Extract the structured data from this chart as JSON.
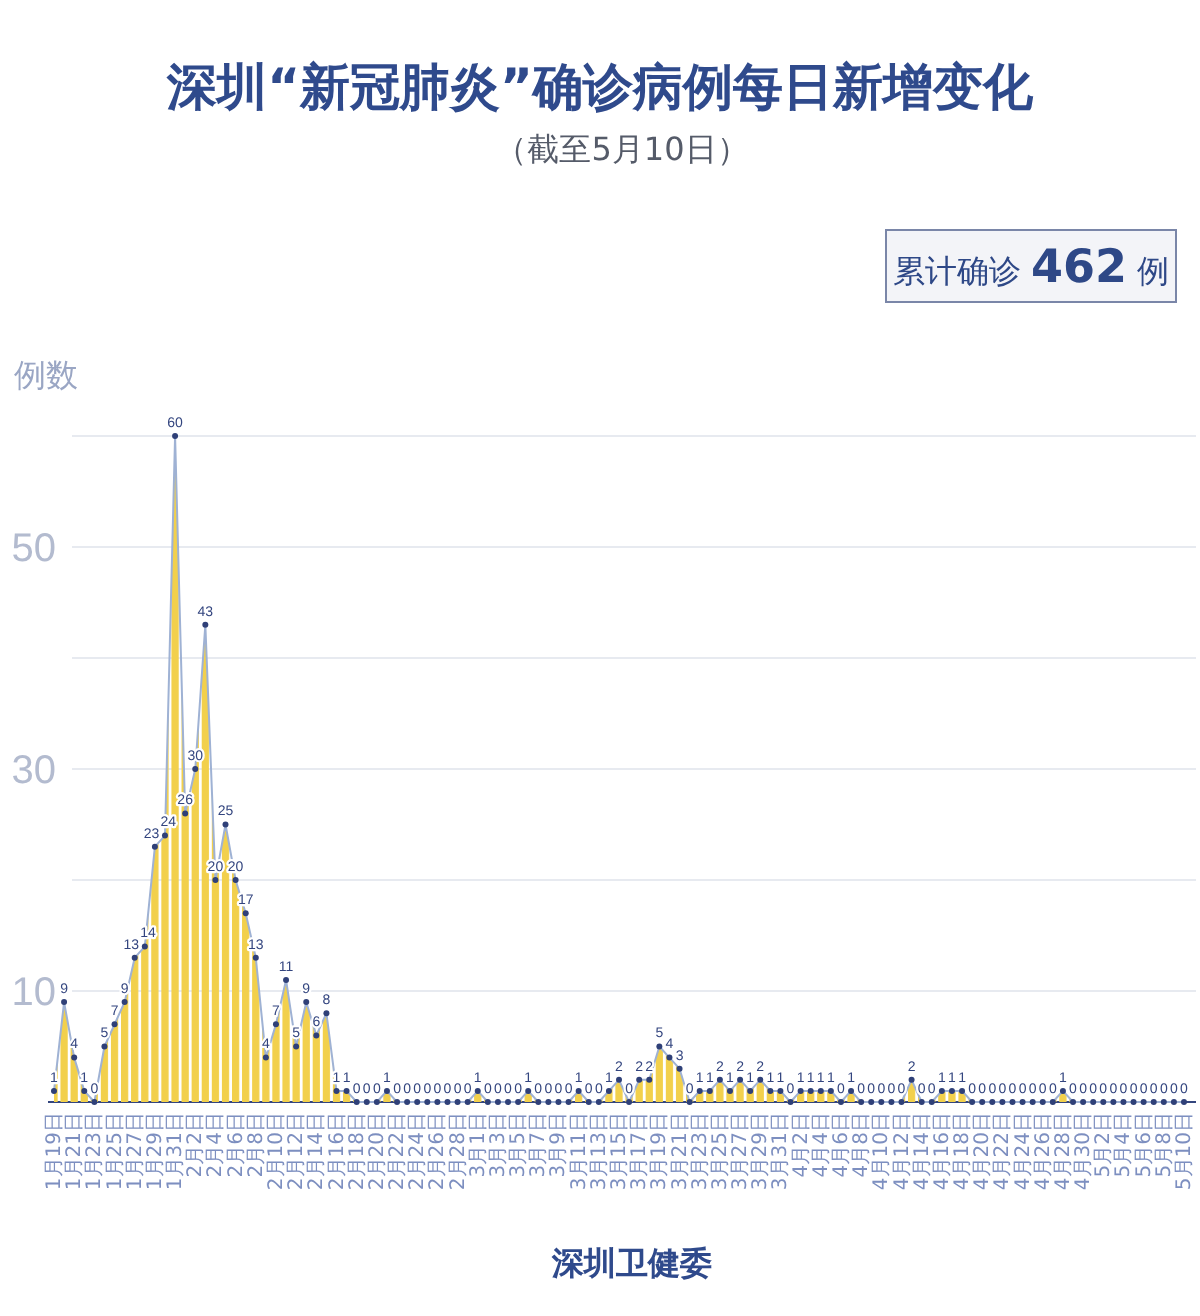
{
  "chart_data": {
    "type": "area",
    "title": "深圳“新冠肺炎”确诊病例每日新增变化",
    "subtitle": "（截至5月10日）",
    "ylabel": "例数",
    "annotations": [
      "累计确诊 **462** 例",
      "深圳卫健委"
    ],
    "categories": [
      "1月19日",
      null,
      "1月21日",
      null,
      "1月23日",
      null,
      "1月25日",
      null,
      "1月27日",
      null,
      "1月29日",
      null,
      "1月31日",
      null,
      "2月2日",
      null,
      "2月4日",
      null,
      "2月6日",
      null,
      "2月8日",
      null,
      "2月10日",
      null,
      "2月12日",
      null,
      "2月14日",
      null,
      "2月16日",
      null,
      "2月18日",
      null,
      "2月20日",
      null,
      "2月22日",
      null,
      "2月24日",
      null,
      "2月26日",
      null,
      "2月28日",
      null,
      "3月1日",
      null,
      "3月3日",
      null,
      "3月5日",
      null,
      "3月7日",
      null,
      "3月9日",
      null,
      "3月11日",
      null,
      "3月13日",
      null,
      "3月15日",
      null,
      "3月17日",
      null,
      "3月19日",
      null,
      "3月21日",
      null,
      "3月23日",
      null,
      "3月25日",
      null,
      "3月27日",
      null,
      "3月29日",
      null,
      "3月31日",
      null,
      "4月2日",
      null,
      "4月4日",
      null,
      "4月6日",
      null,
      "4月8日",
      null,
      "4月10日",
      null,
      "4月12日",
      null,
      "4月14日",
      null,
      "4月16日",
      null,
      "4月18日",
      null,
      "4月20日",
      null,
      "4月22日",
      null,
      "4月24日",
      null,
      "4月26日",
      null,
      "4月28日",
      null,
      "4月30日",
      null,
      "5月2日",
      null,
      "5月4日",
      null,
      "5月6日",
      null,
      "5月8日",
      null,
      "5月10日"
    ],
    "series": [
      {
        "color": "#f2d04c",
        "values": [
          1,
          9,
          4,
          1,
          0,
          5,
          7,
          9,
          13,
          14,
          23,
          24,
          60,
          26,
          30,
          43,
          20,
          25,
          20,
          17,
          13,
          4,
          7,
          11,
          5,
          9,
          6,
          8,
          1,
          1,
          0,
          0,
          0,
          1,
          0,
          0,
          0,
          0,
          0,
          0,
          0,
          0,
          1,
          0,
          0,
          0,
          0,
          1,
          0,
          0,
          0,
          0,
          1,
          0,
          0,
          1,
          2,
          0,
          2,
          2,
          5,
          4,
          3,
          0,
          1,
          1,
          2,
          1,
          2,
          1,
          2,
          1,
          1,
          0,
          1,
          1,
          1,
          1,
          0,
          1,
          0,
          0,
          0,
          0,
          0,
          2,
          0,
          0,
          1,
          1,
          1,
          0,
          0,
          0,
          0,
          0,
          0,
          0,
          0,
          0,
          1,
          0,
          0,
          0,
          0,
          0,
          0,
          0,
          0,
          0,
          0,
          0,
          0
        ]
      }
    ],
    "ylim": [
      0,
      60
    ],
    "yticks": [
      {
        "value": 0,
        "label": null
      },
      10,
      {
        "value": 20,
        "label": null
      },
      30,
      {
        "value": 40,
        "label": null
      },
      50,
      {
        "value": 60,
        "label": null
      }
    ],
    "grid": "y",
    "marker": "circle",
    "line_style": "solid",
    "data_labels": true
  }
}
